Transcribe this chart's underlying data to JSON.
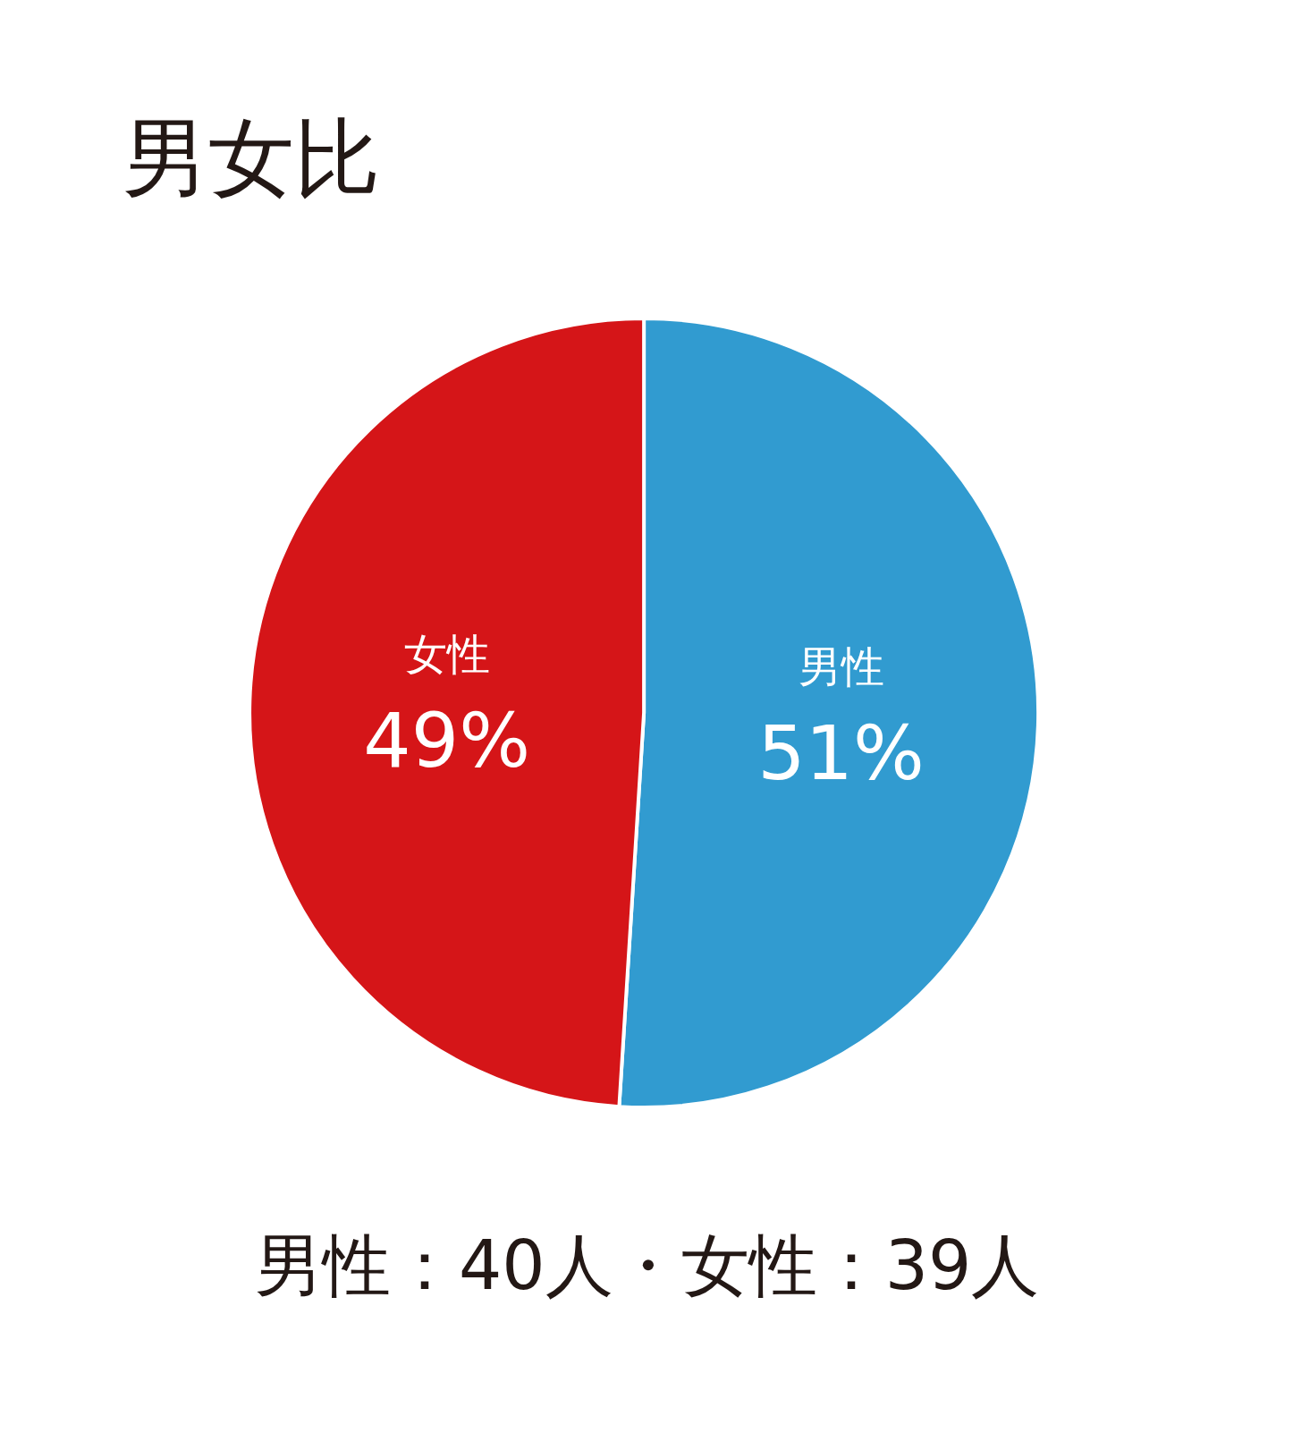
{
  "chart_data": {
    "type": "pie",
    "title": "男女比",
    "categories": [
      "男性",
      "女性"
    ],
    "values": [
      51,
      49
    ],
    "value_labels": [
      "51%",
      "49%"
    ],
    "colors": [
      "#319bd0",
      "#d51518"
    ],
    "annotations": [
      "男性：40人・女性：39人"
    ],
    "legend": false
  }
}
